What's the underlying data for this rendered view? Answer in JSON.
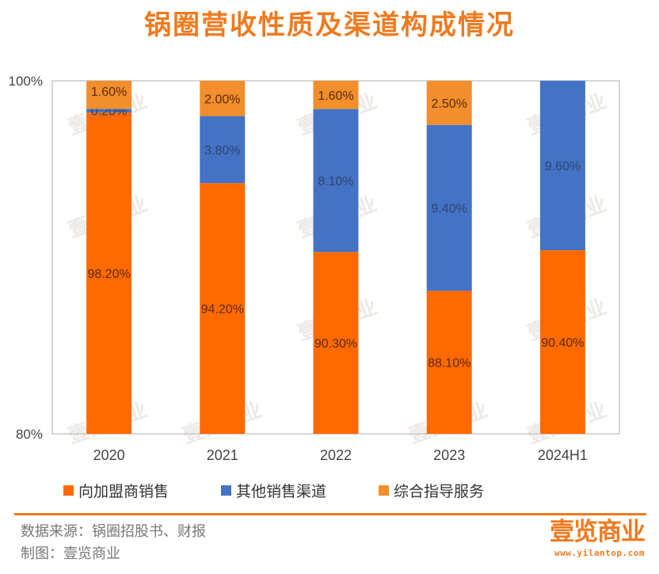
{
  "title": "锅圈营收性质及渠道构成情况",
  "chart_data": {
    "type": "bar",
    "stacked": true,
    "title": "锅圈营收性质及渠道构成情况",
    "xlabel": "",
    "ylabel": "",
    "ylim": [
      80,
      100
    ],
    "yticks": [
      "80%",
      "100%"
    ],
    "ytick_values": [
      80,
      100
    ],
    "grid": false,
    "legend_position": "bottom",
    "categories": [
      "2020",
      "2021",
      "2022",
      "2023",
      "2024H1"
    ],
    "series": [
      {
        "name": "向加盟商销售",
        "color": "#ff6a00",
        "values": [
          98.2,
          94.2,
          90.3,
          88.1,
          90.4
        ],
        "labels": [
          "98.20%",
          "94.20%",
          "90.30%",
          "88.10%",
          "90.40%"
        ]
      },
      {
        "name": "其他销售渠道",
        "color": "#4472c4",
        "values": [
          0.2,
          3.8,
          8.1,
          9.4,
          9.6
        ],
        "labels": [
          "0.20%",
          "3.80%",
          "8.10%",
          "9.40%",
          "9.60%"
        ]
      },
      {
        "name": "综合指导服务",
        "color": "#f28e2b",
        "values": [
          1.6,
          2.0,
          1.6,
          2.5,
          0.0
        ],
        "labels": [
          "1.60%",
          "2.00%",
          "1.60%",
          "2.50%",
          ""
        ]
      }
    ]
  },
  "legend": [
    {
      "label": "向加盟商销售",
      "color": "#ff6a00"
    },
    {
      "label": "其他销售渠道",
      "color": "#4472c4"
    },
    {
      "label": "综合指导服务",
      "color": "#f28e2b"
    }
  ],
  "footer": {
    "source": "数据来源：锅圈招股书、财报",
    "maker": "制图：壹览商业"
  },
  "brand": {
    "name": "壹览商业",
    "url": "www.yilantop.com",
    "color": "#ef7a1f"
  },
  "watermark_text": "壹览商业"
}
